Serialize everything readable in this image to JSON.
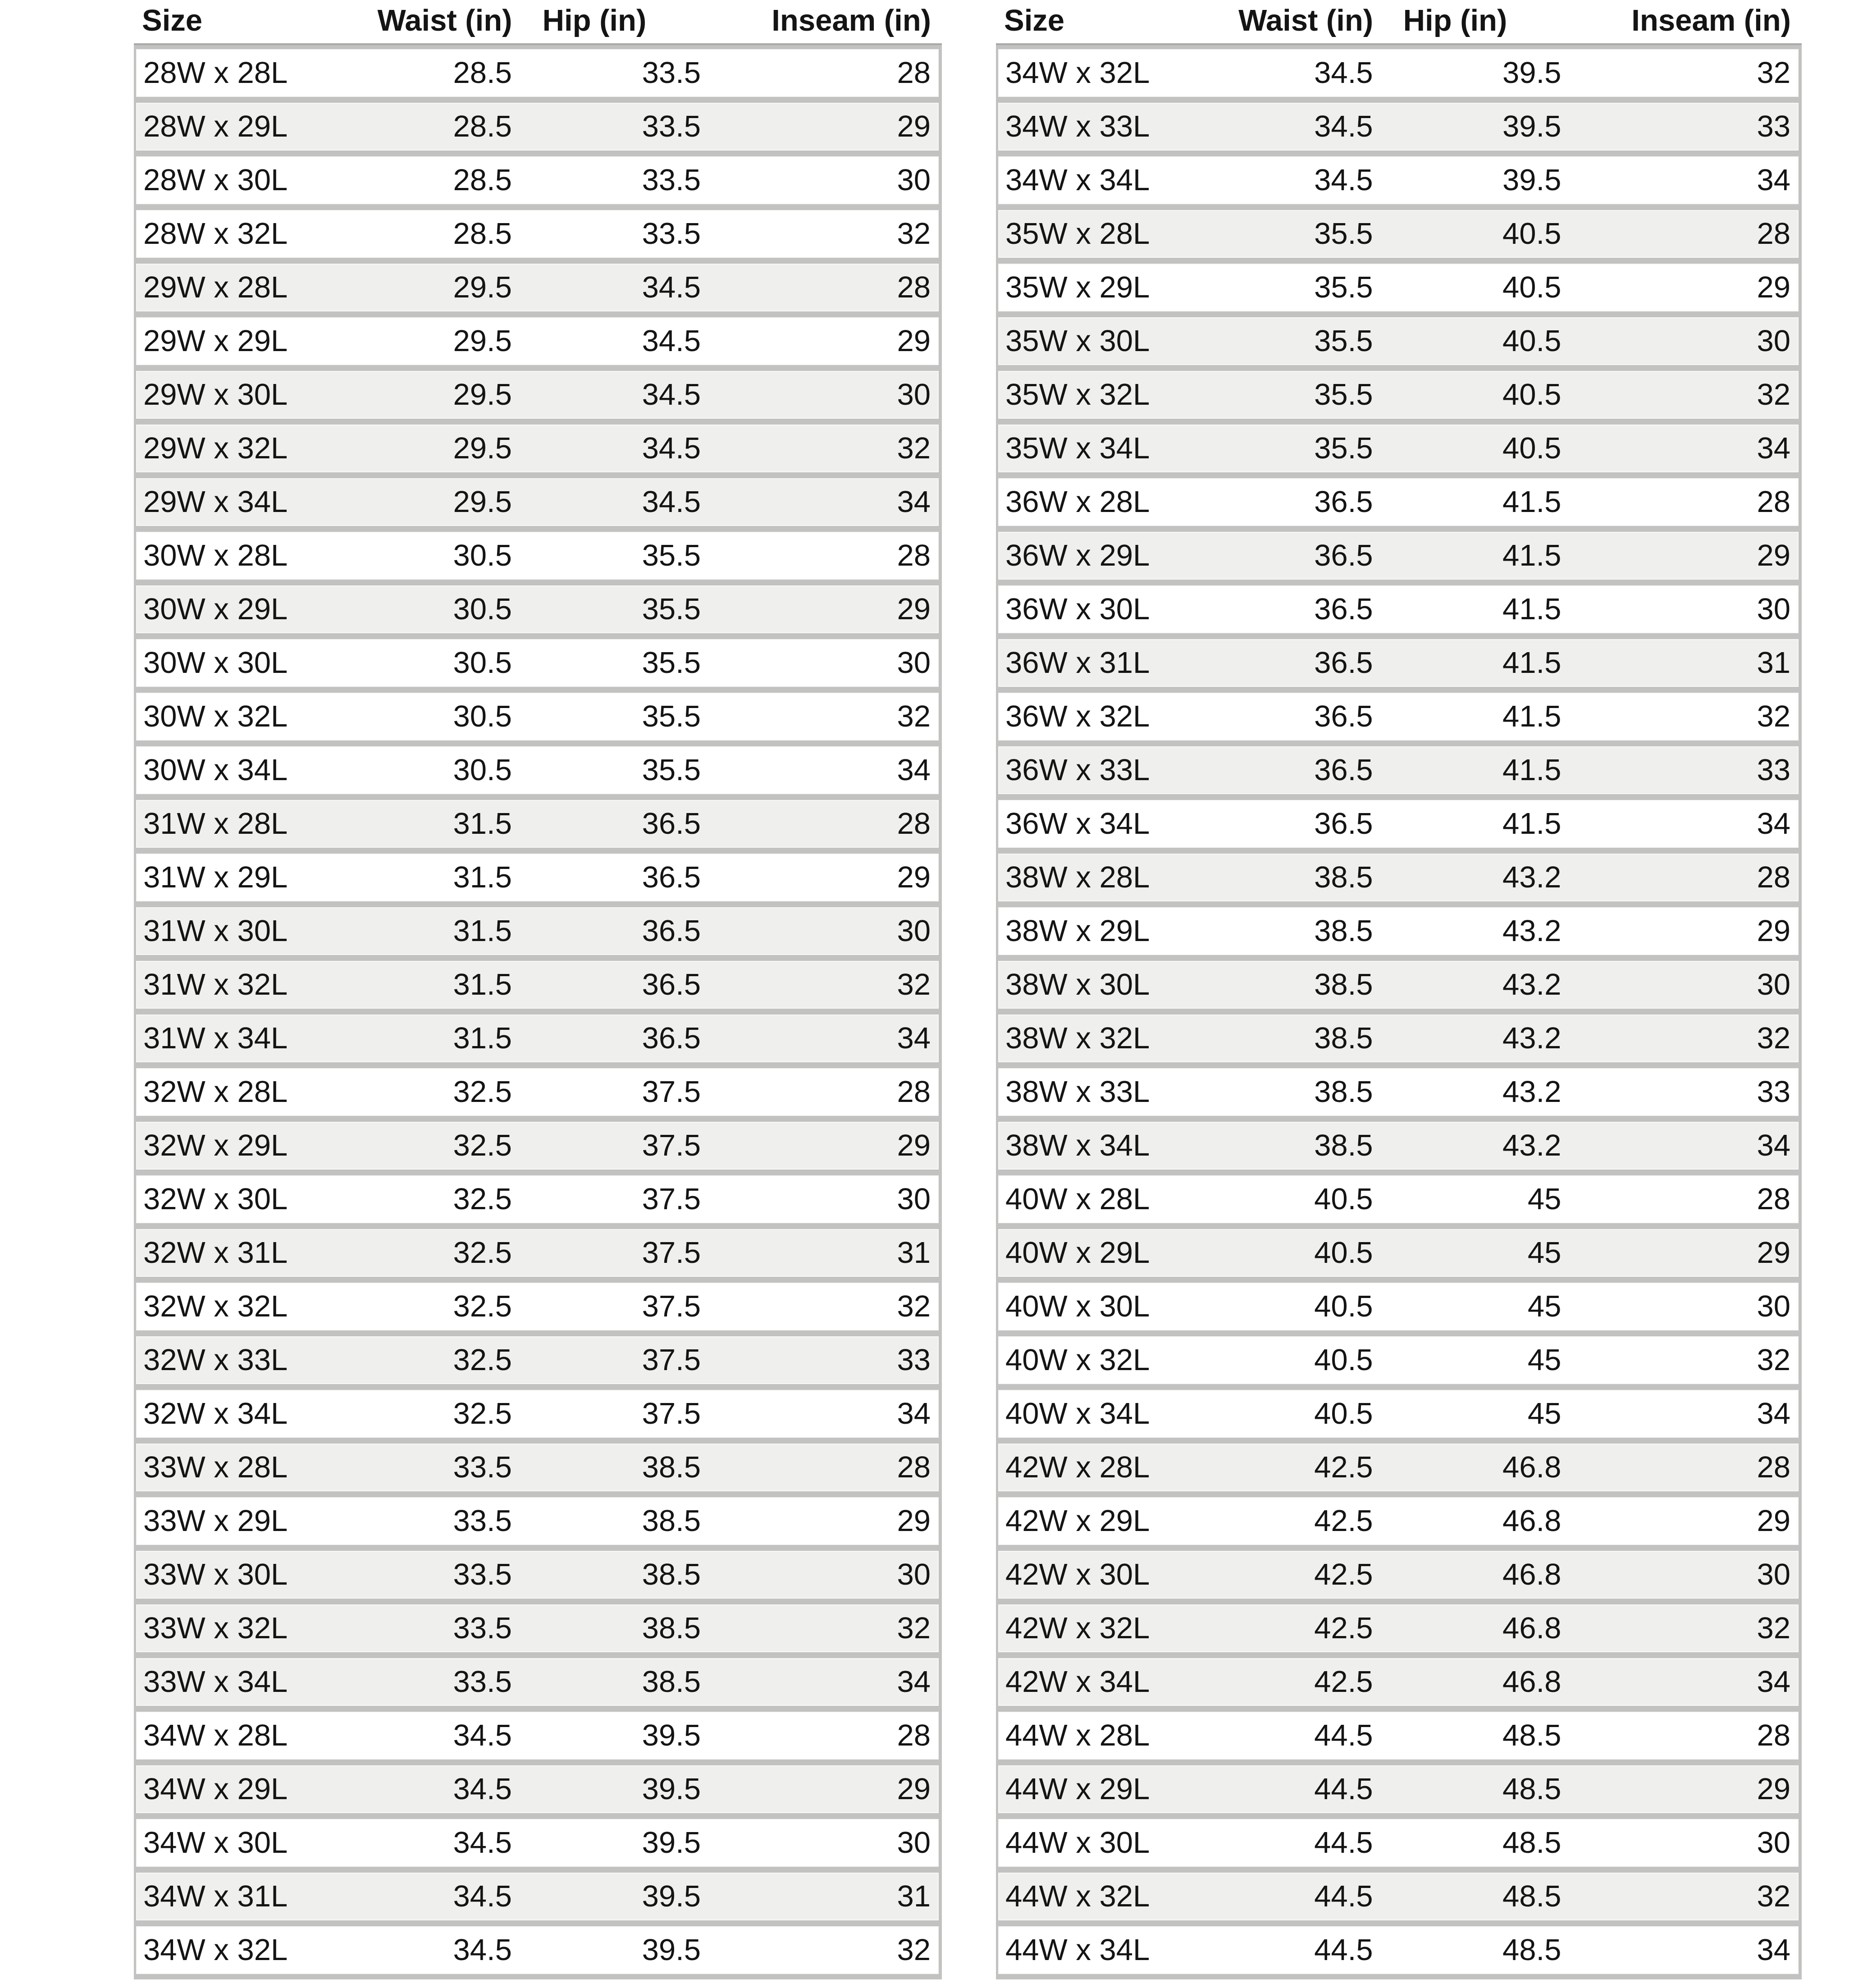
{
  "columns": [
    "Size",
    "Waist (in)",
    "Hip (in)",
    "Inseam (in)"
  ],
  "colors": {
    "page_bg": "#ffffff",
    "row_white": "#ffffff",
    "row_gray": "#efefed",
    "frame": "#c2c2c0",
    "header_rule": "#a9a9a7",
    "text": "#141414"
  },
  "tables": [
    {
      "name": "left",
      "rows": [
        {
          "size": "28W x 28L",
          "waist": "28.5",
          "hip": "33.5",
          "inseam": "28",
          "shade": "white"
        },
        {
          "size": "28W x 29L",
          "waist": "28.5",
          "hip": "33.5",
          "inseam": "29",
          "shade": "gray"
        },
        {
          "size": "28W x 30L",
          "waist": "28.5",
          "hip": "33.5",
          "inseam": "30",
          "shade": "white"
        },
        {
          "size": "28W x 32L",
          "waist": "28.5",
          "hip": "33.5",
          "inseam": "32",
          "shade": "white"
        },
        {
          "size": "29W x 28L",
          "waist": "29.5",
          "hip": "34.5",
          "inseam": "28",
          "shade": "gray"
        },
        {
          "size": "29W x 29L",
          "waist": "29.5",
          "hip": "34.5",
          "inseam": "29",
          "shade": "white"
        },
        {
          "size": "29W x 30L",
          "waist": "29.5",
          "hip": "34.5",
          "inseam": "30",
          "shade": "gray"
        },
        {
          "size": "29W x 32L",
          "waist": "29.5",
          "hip": "34.5",
          "inseam": "32",
          "shade": "gray"
        },
        {
          "size": "29W x 34L",
          "waist": "29.5",
          "hip": "34.5",
          "inseam": "34",
          "shade": "gray"
        },
        {
          "size": "30W x 28L",
          "waist": "30.5",
          "hip": "35.5",
          "inseam": "28",
          "shade": "white"
        },
        {
          "size": "30W x 29L",
          "waist": "30.5",
          "hip": "35.5",
          "inseam": "29",
          "shade": "gray"
        },
        {
          "size": "30W x 30L",
          "waist": "30.5",
          "hip": "35.5",
          "inseam": "30",
          "shade": "white"
        },
        {
          "size": "30W x 32L",
          "waist": "30.5",
          "hip": "35.5",
          "inseam": "32",
          "shade": "white"
        },
        {
          "size": "30W x 34L",
          "waist": "30.5",
          "hip": "35.5",
          "inseam": "34",
          "shade": "white"
        },
        {
          "size": "31W x 28L",
          "waist": "31.5",
          "hip": "36.5",
          "inseam": "28",
          "shade": "gray"
        },
        {
          "size": "31W x 29L",
          "waist": "31.5",
          "hip": "36.5",
          "inseam": "29",
          "shade": "white"
        },
        {
          "size": "31W x 30L",
          "waist": "31.5",
          "hip": "36.5",
          "inseam": "30",
          "shade": "gray"
        },
        {
          "size": "31W x 32L",
          "waist": "31.5",
          "hip": "36.5",
          "inseam": "32",
          "shade": "gray"
        },
        {
          "size": "31W x 34L",
          "waist": "31.5",
          "hip": "36.5",
          "inseam": "34",
          "shade": "gray"
        },
        {
          "size": "32W x 28L",
          "waist": "32.5",
          "hip": "37.5",
          "inseam": "28",
          "shade": "white"
        },
        {
          "size": "32W x 29L",
          "waist": "32.5",
          "hip": "37.5",
          "inseam": "29",
          "shade": "gray"
        },
        {
          "size": "32W x 30L",
          "waist": "32.5",
          "hip": "37.5",
          "inseam": "30",
          "shade": "white"
        },
        {
          "size": "32W x 31L",
          "waist": "32.5",
          "hip": "37.5",
          "inseam": "31",
          "shade": "gray"
        },
        {
          "size": "32W x 32L",
          "waist": "32.5",
          "hip": "37.5",
          "inseam": "32",
          "shade": "white"
        },
        {
          "size": "32W x 33L",
          "waist": "32.5",
          "hip": "37.5",
          "inseam": "33",
          "shade": "gray"
        },
        {
          "size": "32W x 34L",
          "waist": "32.5",
          "hip": "37.5",
          "inseam": "34",
          "shade": "white"
        },
        {
          "size": "33W x 28L",
          "waist": "33.5",
          "hip": "38.5",
          "inseam": "28",
          "shade": "gray"
        },
        {
          "size": "33W x 29L",
          "waist": "33.5",
          "hip": "38.5",
          "inseam": "29",
          "shade": "white"
        },
        {
          "size": "33W x 30L",
          "waist": "33.5",
          "hip": "38.5",
          "inseam": "30",
          "shade": "gray"
        },
        {
          "size": "33W x 32L",
          "waist": "33.5",
          "hip": "38.5",
          "inseam": "32",
          "shade": "gray"
        },
        {
          "size": "33W x 34L",
          "waist": "33.5",
          "hip": "38.5",
          "inseam": "34",
          "shade": "gray"
        },
        {
          "size": "34W x 28L",
          "waist": "34.5",
          "hip": "39.5",
          "inseam": "28",
          "shade": "white"
        },
        {
          "size": "34W x 29L",
          "waist": "34.5",
          "hip": "39.5",
          "inseam": "29",
          "shade": "gray"
        },
        {
          "size": "34W x 30L",
          "waist": "34.5",
          "hip": "39.5",
          "inseam": "30",
          "shade": "white"
        },
        {
          "size": "34W x 31L",
          "waist": "34.5",
          "hip": "39.5",
          "inseam": "31",
          "shade": "gray"
        },
        {
          "size": "34W x 32L",
          "waist": "34.5",
          "hip": "39.5",
          "inseam": "32",
          "shade": "white"
        }
      ]
    },
    {
      "name": "right",
      "rows": [
        {
          "size": "34W x 32L",
          "waist": "34.5",
          "hip": "39.5",
          "inseam": "32",
          "shade": "white"
        },
        {
          "size": "34W x 33L",
          "waist": "34.5",
          "hip": "39.5",
          "inseam": "33",
          "shade": "gray"
        },
        {
          "size": "34W x 34L",
          "waist": "34.5",
          "hip": "39.5",
          "inseam": "34",
          "shade": "white"
        },
        {
          "size": "35W x 28L",
          "waist": "35.5",
          "hip": "40.5",
          "inseam": "28",
          "shade": "gray"
        },
        {
          "size": "35W x 29L",
          "waist": "35.5",
          "hip": "40.5",
          "inseam": "29",
          "shade": "white"
        },
        {
          "size": "35W x 30L",
          "waist": "35.5",
          "hip": "40.5",
          "inseam": "30",
          "shade": "gray"
        },
        {
          "size": "35W x 32L",
          "waist": "35.5",
          "hip": "40.5",
          "inseam": "32",
          "shade": "gray"
        },
        {
          "size": "35W x 34L",
          "waist": "35.5",
          "hip": "40.5",
          "inseam": "34",
          "shade": "gray"
        },
        {
          "size": "36W x 28L",
          "waist": "36.5",
          "hip": "41.5",
          "inseam": "28",
          "shade": "white"
        },
        {
          "size": "36W x 29L",
          "waist": "36.5",
          "hip": "41.5",
          "inseam": "29",
          "shade": "gray"
        },
        {
          "size": "36W x 30L",
          "waist": "36.5",
          "hip": "41.5",
          "inseam": "30",
          "shade": "white"
        },
        {
          "size": "36W x 31L",
          "waist": "36.5",
          "hip": "41.5",
          "inseam": "31",
          "shade": "gray"
        },
        {
          "size": "36W x 32L",
          "waist": "36.5",
          "hip": "41.5",
          "inseam": "32",
          "shade": "white"
        },
        {
          "size": "36W x 33L",
          "waist": "36.5",
          "hip": "41.5",
          "inseam": "33",
          "shade": "gray"
        },
        {
          "size": "36W x 34L",
          "waist": "36.5",
          "hip": "41.5",
          "inseam": "34",
          "shade": "white"
        },
        {
          "size": "38W x 28L",
          "waist": "38.5",
          "hip": "43.2",
          "inseam": "28",
          "shade": "gray"
        },
        {
          "size": "38W x 29L",
          "waist": "38.5",
          "hip": "43.2",
          "inseam": "29",
          "shade": "white"
        },
        {
          "size": "38W x 30L",
          "waist": "38.5",
          "hip": "43.2",
          "inseam": "30",
          "shade": "gray"
        },
        {
          "size": "38W x 32L",
          "waist": "38.5",
          "hip": "43.2",
          "inseam": "32",
          "shade": "gray"
        },
        {
          "size": "38W x 33L",
          "waist": "38.5",
          "hip": "43.2",
          "inseam": "33",
          "shade": "white"
        },
        {
          "size": "38W x 34L",
          "waist": "38.5",
          "hip": "43.2",
          "inseam": "34",
          "shade": "gray"
        },
        {
          "size": "40W x 28L",
          "waist": "40.5",
          "hip": "45",
          "inseam": "28",
          "shade": "white"
        },
        {
          "size": "40W x 29L",
          "waist": "40.5",
          "hip": "45",
          "inseam": "29",
          "shade": "gray"
        },
        {
          "size": "40W x 30L",
          "waist": "40.5",
          "hip": "45",
          "inseam": "30",
          "shade": "white"
        },
        {
          "size": "40W x 32L",
          "waist": "40.5",
          "hip": "45",
          "inseam": "32",
          "shade": "white"
        },
        {
          "size": "40W x 34L",
          "waist": "40.5",
          "hip": "45",
          "inseam": "34",
          "shade": "white"
        },
        {
          "size": "42W x 28L",
          "waist": "42.5",
          "hip": "46.8",
          "inseam": "28",
          "shade": "gray"
        },
        {
          "size": "42W x 29L",
          "waist": "42.5",
          "hip": "46.8",
          "inseam": "29",
          "shade": "white"
        },
        {
          "size": "42W x 30L",
          "waist": "42.5",
          "hip": "46.8",
          "inseam": "30",
          "shade": "gray"
        },
        {
          "size": "42W x 32L",
          "waist": "42.5",
          "hip": "46.8",
          "inseam": "32",
          "shade": "gray"
        },
        {
          "size": "42W x 34L",
          "waist": "42.5",
          "hip": "46.8",
          "inseam": "34",
          "shade": "gray"
        },
        {
          "size": "44W x 28L",
          "waist": "44.5",
          "hip": "48.5",
          "inseam": "28",
          "shade": "white"
        },
        {
          "size": "44W x 29L",
          "waist": "44.5",
          "hip": "48.5",
          "inseam": "29",
          "shade": "gray"
        },
        {
          "size": "44W x 30L",
          "waist": "44.5",
          "hip": "48.5",
          "inseam": "30",
          "shade": "white"
        },
        {
          "size": "44W x 32L",
          "waist": "44.5",
          "hip": "48.5",
          "inseam": "32",
          "shade": "gray"
        },
        {
          "size": "44W x 34L",
          "waist": "44.5",
          "hip": "48.5",
          "inseam": "34",
          "shade": "white"
        }
      ]
    }
  ]
}
